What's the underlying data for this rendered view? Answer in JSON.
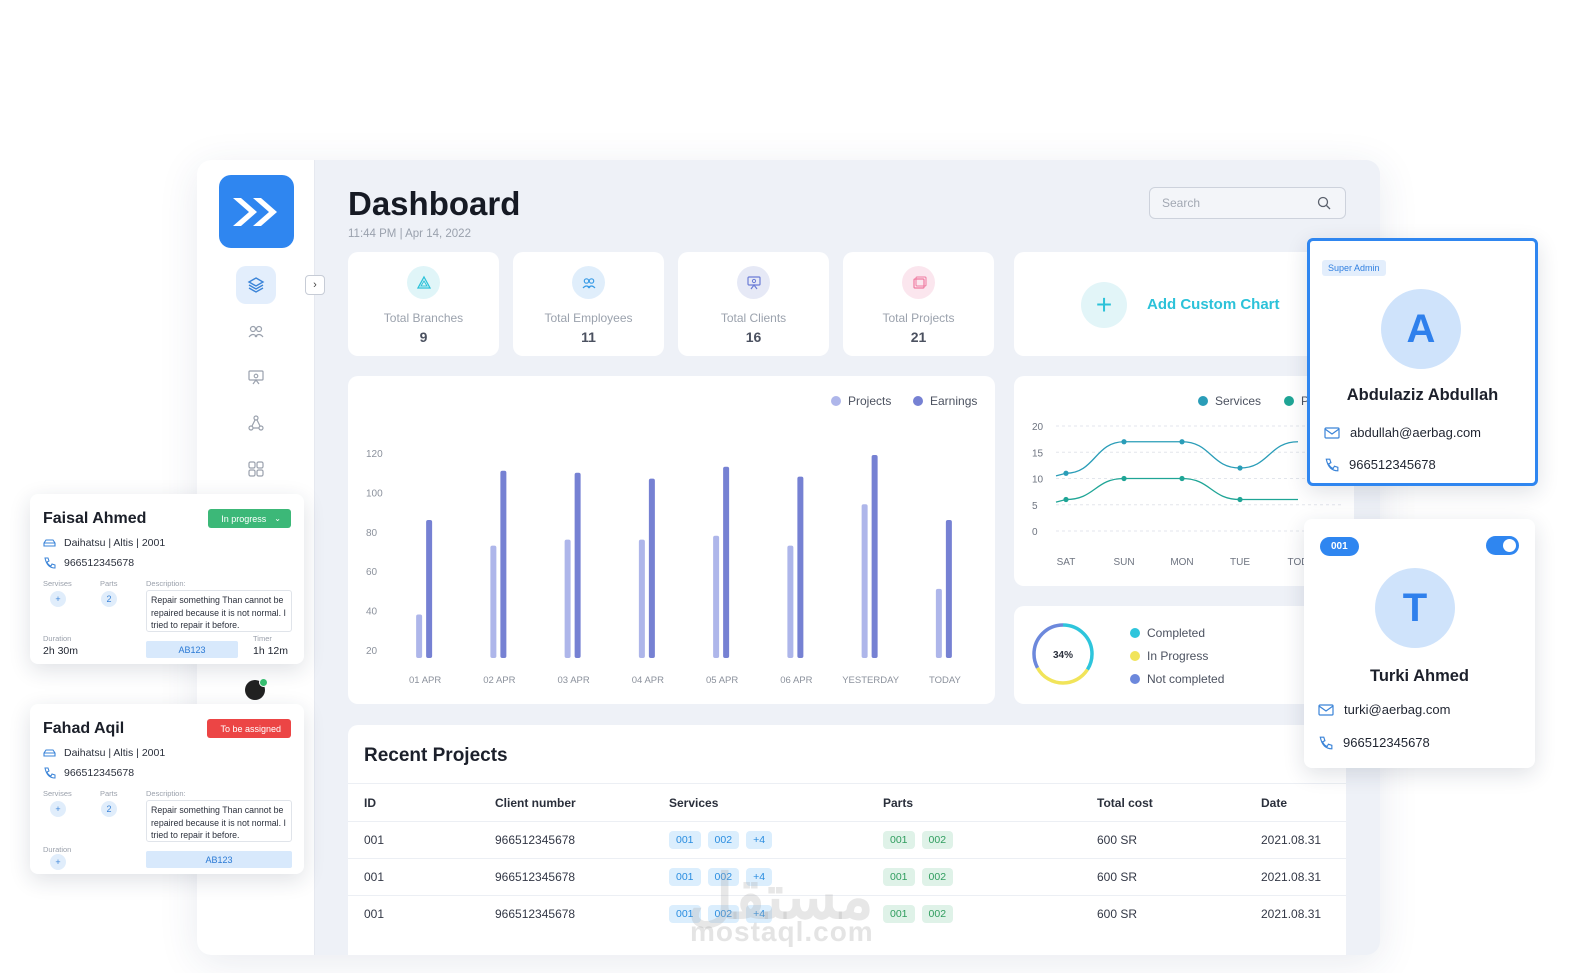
{
  "header": {
    "title": "Dashboard",
    "time": "11:44 PM",
    "date": "Apr 14, 2022",
    "datetime": "11:44 PM | Apr 14, 2022"
  },
  "search": {
    "placeholder": "Search"
  },
  "stats": [
    {
      "label": "Total Branches",
      "value": "9",
      "icon": "branch-icon",
      "color": "#2cc2d9"
    },
    {
      "label": "Total Employees",
      "value": "11",
      "icon": "users-icon",
      "color": "#3b9ce6"
    },
    {
      "label": "Total Clients",
      "value": "16",
      "icon": "client-icon",
      "color": "#6b7cd6"
    },
    {
      "label": "Total Projects",
      "value": "21",
      "icon": "projects-icon",
      "color": "#ef7aa0"
    }
  ],
  "custom_chart": {
    "label": "Add Custom Chart"
  },
  "chart_data": [
    {
      "type": "bar",
      "categories": [
        "01 APR",
        "02 APR",
        "03 APR",
        "04 APR",
        "05 APR",
        "06 APR",
        "YESTERDAY",
        "TODAY"
      ],
      "ylim": [
        0,
        120
      ],
      "yticks": [
        "120",
        "100",
        "80",
        "60",
        "40",
        "20"
      ],
      "series": [
        {
          "name": "Projects",
          "color": "#aeb6ea",
          "values": [
            18,
            53,
            56,
            56,
            58,
            53,
            74,
            31
          ]
        },
        {
          "name": "Earnings",
          "color": "#7681d3",
          "values": [
            66,
            91,
            90,
            87,
            93,
            88,
            99,
            66
          ]
        }
      ],
      "legend": "top-right"
    },
    {
      "type": "line",
      "categories": [
        "SAT",
        "SUN",
        "MON",
        "TUE",
        "TOD"
      ],
      "ylim": [
        0,
        20
      ],
      "yticks": [
        "20",
        "15",
        "10",
        "5",
        "0"
      ],
      "series": [
        {
          "name": "Services",
          "color": "#2a9db8",
          "values": [
            11,
            17,
            17,
            12,
            17
          ]
        },
        {
          "name": "P",
          "color": "#1fa596",
          "values": [
            6,
            10,
            10,
            6,
            6
          ]
        }
      ],
      "legend": "top-right"
    },
    {
      "type": "pie",
      "center_label": "34%",
      "slices": [
        {
          "name": "Completed",
          "color": "#2ec5dc",
          "value": 34
        },
        {
          "name": "In Progress",
          "color": "#f1e45a",
          "value": 33
        },
        {
          "name": "Not completed",
          "color": "#6c88dc",
          "value": 33
        }
      ]
    }
  ],
  "recent_projects": {
    "title": "Recent Projects",
    "columns": [
      "ID",
      "Client number",
      "Services",
      "Parts",
      "Total cost",
      "Date"
    ],
    "rows": [
      {
        "id": "001",
        "client": "966512345678",
        "services": [
          "001",
          "002",
          "+4"
        ],
        "parts": [
          "001",
          "002"
        ],
        "cost": "600 SR",
        "date": "2021.08.31"
      },
      {
        "id": "001",
        "client": "966512345678",
        "services": [
          "001",
          "002",
          "+4"
        ],
        "parts": [
          "001",
          "002"
        ],
        "cost": "600 SR",
        "date": "2021.08.31"
      },
      {
        "id": "001",
        "client": "966512345678",
        "services": [
          "001",
          "002",
          "+4"
        ],
        "parts": [
          "001",
          "002"
        ],
        "cost": "600 SR",
        "date": "2021.08.31"
      }
    ]
  },
  "jobs": [
    {
      "name": "Faisal Ahmed",
      "status": "In progress",
      "status_color": "#3cb878",
      "car": "Daihatsu | Altis | 2001",
      "phone": "966512345678",
      "services_label": "Servises",
      "parts_label": "Parts",
      "desc_label": "Description:",
      "parts_count": "2",
      "description": "Repair something Than cannot be repaired because it is not normal. I tried to repair it before.",
      "duration_label": "Duration",
      "duration": "2h 30m",
      "code": "AB123",
      "timer_label": "Timer",
      "timer": "1h 12m"
    },
    {
      "name": "Fahad Aqil",
      "status": "To be assigned",
      "status_color": "#ec4545",
      "car": "Daihatsu | Altis | 2001",
      "phone": "966512345678",
      "services_label": "Servises",
      "parts_label": "Parts",
      "desc_label": "Description:",
      "parts_count": "2",
      "description": "Repair something Than cannot be repaired because it is not normal. I tried to repair it before.",
      "duration_label": "Duration",
      "code": "AB123"
    }
  ],
  "profiles": [
    {
      "role": "Super Admin",
      "initial": "A",
      "name": "Abdulaziz Abdullah",
      "email": "abdullah@aerbag.com",
      "phone": "966512345678"
    },
    {
      "badge": "001",
      "initial": "T",
      "name": "Turki Ahmed",
      "email": "turki@aerbag.com",
      "phone": "966512345678"
    }
  ],
  "watermark": {
    "arabic": "مستقل",
    "latin": "mostaql.com"
  }
}
